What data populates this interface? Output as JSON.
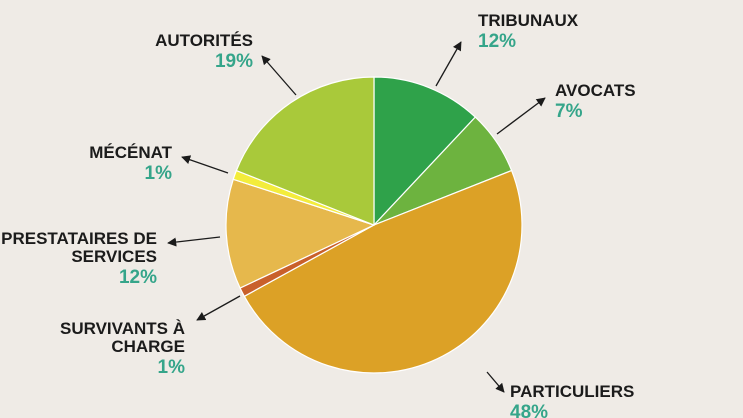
{
  "chart_data": {
    "type": "pie",
    "categories": [
      "TRIBUNAUX",
      "AVOCATS",
      "PARTICULIERS",
      "SURVIVANTS À CHARGE",
      "PRESTATAIRES DE SERVICES",
      "MÉCÉNAT",
      "AUTORITÉS"
    ],
    "values": [
      12,
      7,
      48,
      1,
      12,
      1,
      19
    ],
    "value_labels": [
      "12%",
      "7%",
      "48%",
      "1%",
      "12%",
      "1%",
      "19%"
    ],
    "colors": [
      "#2fa24a",
      "#6db33f",
      "#dca126",
      "#c9602b",
      "#e6b84c",
      "#f3ec3b",
      "#a9c93a"
    ]
  }
}
